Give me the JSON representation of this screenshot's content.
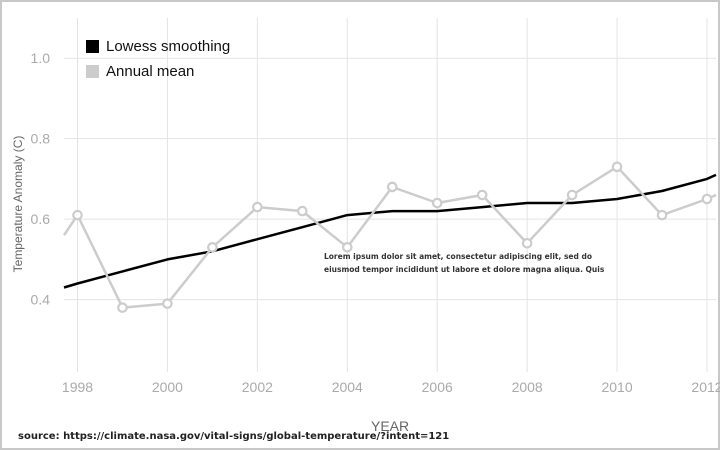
{
  "chart_data": {
    "type": "line",
    "xlabel": "YEAR",
    "ylabel": "Temperature Anomaly (C)",
    "xlim": [
      1997.7,
      2012.2
    ],
    "ylim": [
      0.22,
      1.1
    ],
    "x_ticks": [
      1998,
      2000,
      2002,
      2004,
      2006,
      2008,
      2010,
      2012
    ],
    "y_ticks": [
      0.4,
      0.6,
      0.8,
      1.0
    ],
    "y_tick_labels": [
      "0.4",
      "0.6",
      "0.8",
      "1.0"
    ],
    "grid": true,
    "legend_position": "top-left",
    "series": [
      {
        "name": "Lowess smoothing",
        "color": "#000000",
        "markers": false,
        "x": [
          1997.7,
          1998,
          1999,
          2000,
          2001,
          2002,
          2003,
          2004,
          2005,
          2006,
          2007,
          2008,
          2009,
          2010,
          2011,
          2012,
          2012.2
        ],
        "values": [
          0.43,
          0.44,
          0.47,
          0.5,
          0.52,
          0.55,
          0.58,
          0.61,
          0.62,
          0.62,
          0.63,
          0.64,
          0.64,
          0.65,
          0.67,
          0.7,
          0.71
        ]
      },
      {
        "name": "Annual mean",
        "color": "#cccccc",
        "markers": true,
        "x": [
          1997.7,
          1998,
          1999,
          2000,
          2001,
          2002,
          2003,
          2004,
          2005,
          2006,
          2007,
          2008,
          2009,
          2010,
          2011,
          2012,
          2012.2
        ],
        "values": [
          0.56,
          0.61,
          0.38,
          0.39,
          0.53,
          0.63,
          0.62,
          0.53,
          0.68,
          0.64,
          0.66,
          0.54,
          0.66,
          0.73,
          0.61,
          0.65,
          0.66
        ],
        "marker_points": [
          1,
          2,
          3,
          4,
          5,
          6,
          7,
          8,
          9,
          10,
          11,
          12,
          13,
          14,
          15
        ]
      }
    ],
    "annotation": "Lorem ipsum dolor sit amet, consectetur adipiscing elit, sed do eiusmod tempor incididunt ut labore et dolore magna aliqua. Quis",
    "source": "source:  https://climate.nasa.gov/vital-signs/global-temperature/?intent=121"
  },
  "colors": {
    "grid": "#e3e3e3",
    "tick_text": "#aaaaaa",
    "background": "#ffffff"
  }
}
